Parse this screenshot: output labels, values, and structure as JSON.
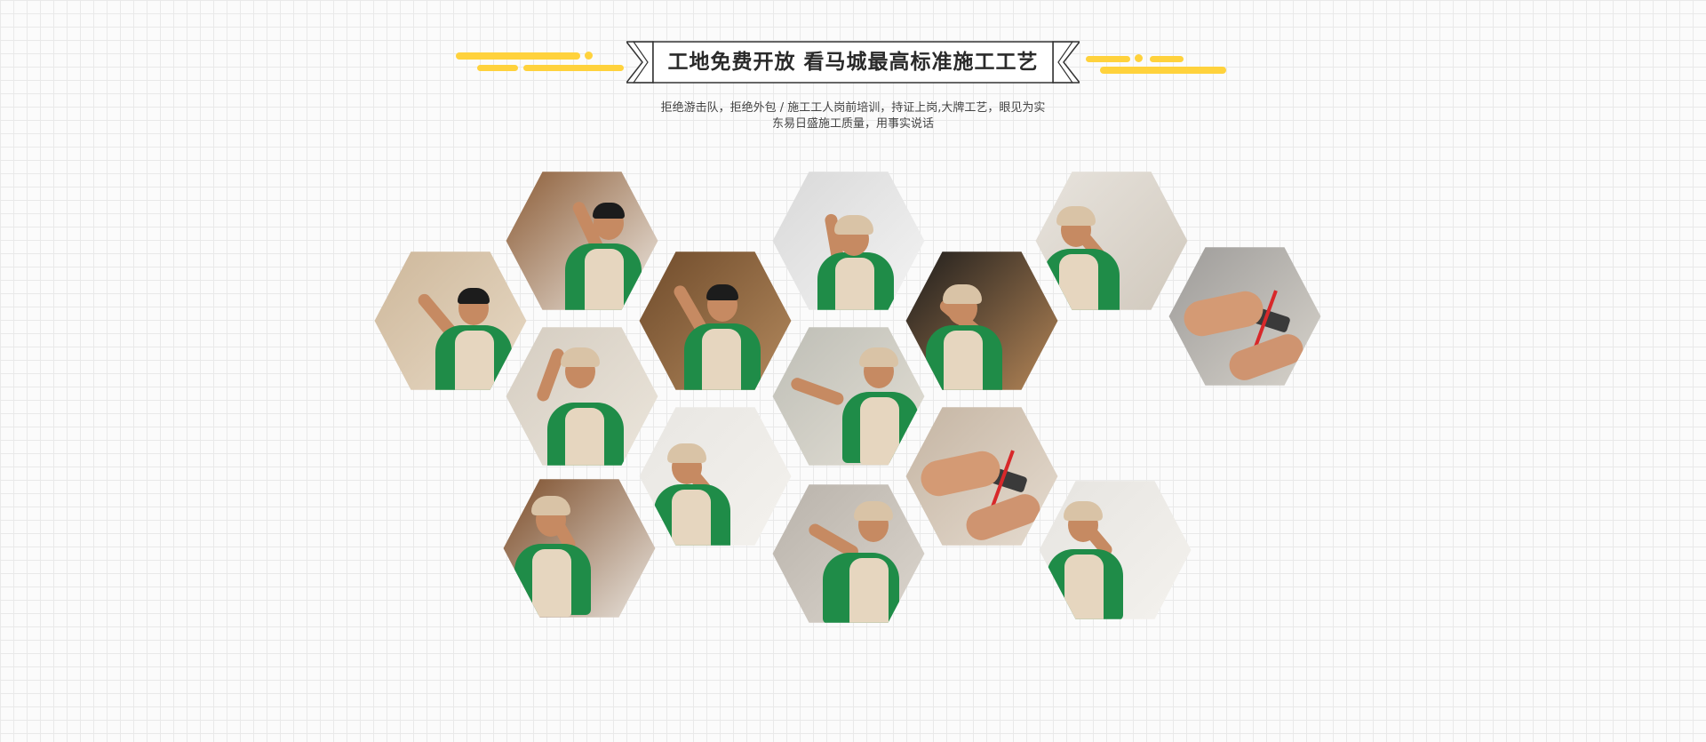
{
  "header": {
    "title": "工地免费开放 看马城最高标准施工工艺",
    "subtitle_line1": "拒绝游击队，拒绝外包 / 施工工人岗前培训，持证上岗,大牌工艺，眼见为实",
    "subtitle_line2": "东易日盛施工质量，用事实说话"
  },
  "colors": {
    "accent": "#ffd23c",
    "uniform_green": "#1f8c48",
    "vest_beige": "#e6d6bf",
    "title_text": "#2a2a2a",
    "grid_line": "#e9e9e9"
  },
  "gallery": [
    {
      "id": "hex-1",
      "scene": "worker-tiling-wall",
      "bg1": "#cdb79a",
      "bg2": "#e8dac6",
      "cap": false
    },
    {
      "id": "hex-2",
      "scene": "worker-ceiling-reach",
      "bg1": "#8a5a34",
      "bg2": "#f0ece6",
      "cap": false
    },
    {
      "id": "hex-3",
      "scene": "worker-plastering",
      "bg1": "#6e4a2a",
      "bg2": "#b48a5e",
      "cap": false
    },
    {
      "id": "hex-4",
      "scene": "worker-ceiling-frame",
      "bg1": "#d8d8d8",
      "bg2": "#f4f4f4",
      "cap": true
    },
    {
      "id": "hex-5",
      "scene": "worker-electrical-door",
      "bg1": "#1a1a1a",
      "bg2": "#b88858",
      "cap": true
    },
    {
      "id": "hex-6",
      "scene": "worker-ceiling-wiring",
      "bg1": "#e8e4de",
      "bg2": "#d0c8bc",
      "cap": true
    },
    {
      "id": "hex-7",
      "scene": "hands-wiring-box",
      "bg1": "#9c9a98",
      "bg2": "#d8d4cc",
      "cap": false
    },
    {
      "id": "hex-8",
      "scene": "worker-drilling",
      "bg1": "#d4ccc0",
      "bg2": "#ece6dc",
      "cap": true
    },
    {
      "id": "hex-9",
      "scene": "worker-tile-cutting",
      "bg1": "#bdbdb5",
      "bg2": "#e4e0d6",
      "cap": true
    },
    {
      "id": "hex-10",
      "scene": "worker-socket-install",
      "bg1": "#e8e6e2",
      "bg2": "#f4f2ee",
      "cap": true
    },
    {
      "id": "hex-11",
      "scene": "hands-level-tool",
      "bg1": "#c4b4a2",
      "bg2": "#e6dcd0",
      "cap": false
    },
    {
      "id": "hex-12",
      "scene": "worker-door-socket",
      "bg1": "#7a4a26",
      "bg2": "#ece8e2",
      "cap": true
    },
    {
      "id": "hex-13",
      "scene": "worker-plumbing",
      "bg1": "#b8b2aa",
      "bg2": "#dcd6ce",
      "cap": true
    },
    {
      "id": "hex-14",
      "scene": "worker-switch-install",
      "bg1": "#e6e4e0",
      "bg2": "#f4f2ee",
      "cap": true
    }
  ]
}
